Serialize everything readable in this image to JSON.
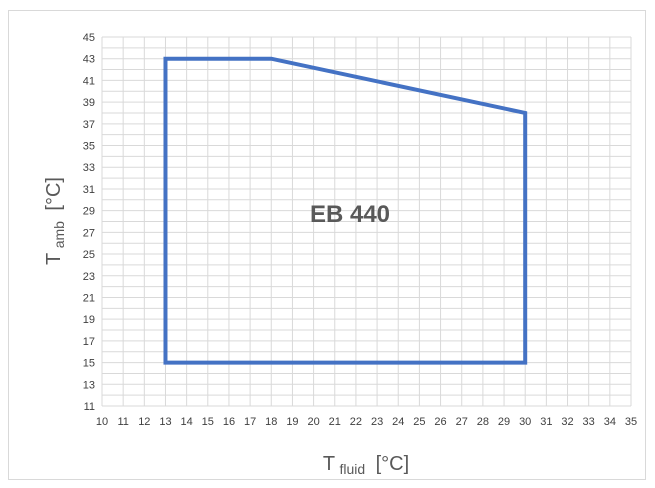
{
  "chart_data": {
    "type": "line",
    "title": "",
    "annotation": "EB 440",
    "xlabel": {
      "main": "T",
      "sub": "fluid",
      "unit": "[°C]"
    },
    "ylabel": {
      "main": "T",
      "sub": "amb",
      "unit": "[°C]"
    },
    "xlim": [
      10,
      35
    ],
    "ylim": [
      11,
      45
    ],
    "x_ticks": [
      10,
      11,
      12,
      13,
      14,
      15,
      16,
      17,
      18,
      19,
      20,
      21,
      22,
      23,
      24,
      25,
      26,
      27,
      28,
      29,
      30,
      31,
      32,
      33,
      34,
      35
    ],
    "y_ticks": [
      11,
      13,
      15,
      17,
      19,
      21,
      23,
      25,
      27,
      29,
      31,
      33,
      35,
      37,
      39,
      41,
      43,
      45
    ],
    "grid": true,
    "legend": "none",
    "series": [
      {
        "color": "#4472c4",
        "x": [
          13,
          13,
          18,
          30,
          30,
          13
        ],
        "y": [
          15,
          43,
          43,
          38,
          15,
          15
        ]
      }
    ]
  }
}
